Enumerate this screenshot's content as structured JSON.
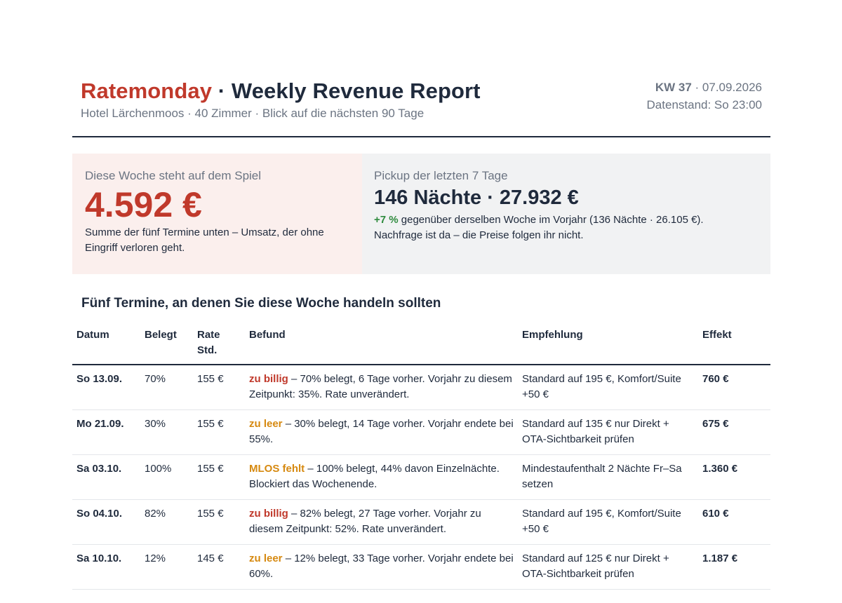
{
  "header": {
    "brand": "Ratemonday",
    "title_rest": " · Weekly Revenue Report",
    "subtitle": "Hotel Lärchenmoos · 40 Zimmer · Blick auf die nächsten 90 Tage",
    "week": "KW 37",
    "date": " · 07.09.2026",
    "data_status": "Datenstand: So 23:00"
  },
  "at_stake": {
    "label": "Diese Woche steht auf dem Spiel",
    "amount": "4.592 €",
    "note": "Summe der fünf Termine unten – Umsatz, der ohne Eingriff verloren geht."
  },
  "pickup": {
    "label": "Pickup der letzten 7 Tage",
    "headline": "146 Nächte · 27.932 €",
    "change": "+7 %",
    "change_text": " gegenüber derselben Woche im Vorjahr (136 Nächte · 26.105 €).",
    "note": "Nachfrage ist da – die Preise folgen ihr nicht."
  },
  "section_title": "Fünf Termine, an denen Sie diese Woche handeln sollten",
  "table": {
    "headers": {
      "date": "Datum",
      "occupancy": "Belegt",
      "rate_line1": "Rate",
      "rate_line2": "Std.",
      "finding": "Befund",
      "recommendation": "Empfehlung",
      "effect": "Effekt"
    },
    "rows": [
      {
        "date": "So 13.09.",
        "occupancy": "70%",
        "rate": "155 €",
        "tag": "zu billig",
        "finding": " – 70% belegt, 6 Tage vorher. Vorjahr zu diesem Zeitpunkt: 35%. Rate unverändert.",
        "recommendation": "Standard auf 195 €, Komfort/Suite +50 €",
        "effect": "760 €"
      },
      {
        "date": "Mo 21.09.",
        "occupancy": "30%",
        "rate": "155 €",
        "tag": "zu leer",
        "finding": " – 30% belegt, 14 Tage vorher. Vorjahr endete bei 55%.",
        "recommendation": "Standard auf 135 € nur Direkt + OTA-Sichtbarkeit prüfen",
        "effect": "675 €"
      },
      {
        "date": "Sa 03.10.",
        "occupancy": "100%",
        "rate": "155 €",
        "tag": "MLOS fehlt",
        "finding": " – 100% belegt, 44% davon Einzelnächte. Blockiert das Wochenende.",
        "recommendation": "Mindestaufenthalt 2 Nächte Fr–Sa setzen",
        "effect": "1.360 €"
      },
      {
        "date": "So 04.10.",
        "occupancy": "82%",
        "rate": "155 €",
        "tag": "zu billig",
        "finding": " – 82% belegt, 27 Tage vorher. Vorjahr zu diesem Zeitpunkt: 52%. Rate unverändert.",
        "recommendation": "Standard auf 195 €, Komfort/Suite +50 €",
        "effect": "610 €"
      },
      {
        "date": "Sa 10.10.",
        "occupancy": "12%",
        "rate": "145 €",
        "tag": "zu leer",
        "finding": " – 12% belegt, 33 Tage vorher. Vorjahr endete bei 60%.",
        "recommendation": "Standard auf 125 € nur Direkt + OTA-Sichtbarkeit prüfen",
        "effect": "1.187 €"
      }
    ]
  },
  "colors": {
    "brand_red": "#c0392b",
    "tag_amber": "#d68910",
    "positive_green": "#2e8b3e",
    "ink": "#1f2a3c"
  }
}
